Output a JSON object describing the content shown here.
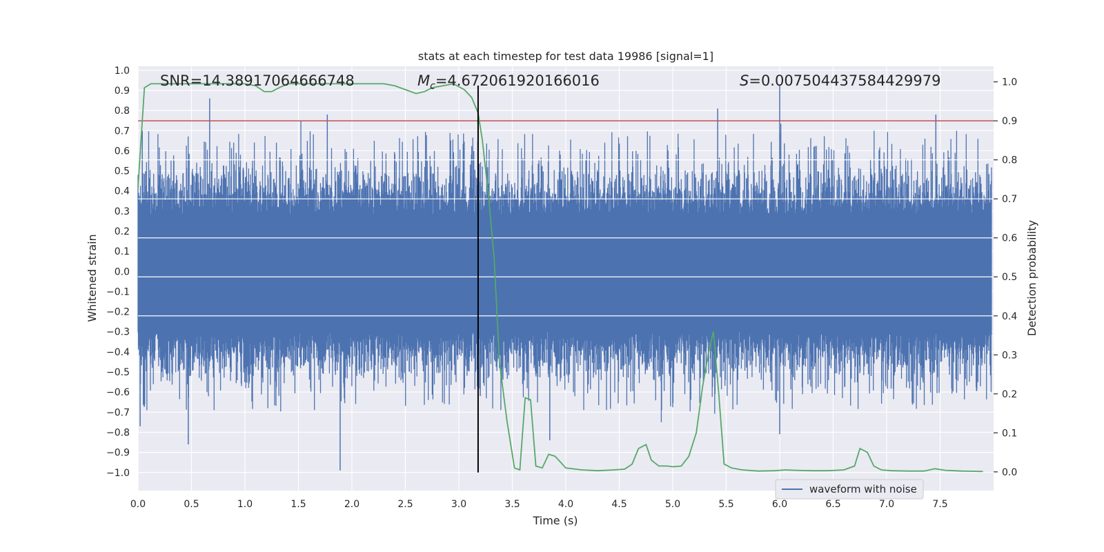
{
  "chart_data": {
    "type": "line",
    "title": "stats at each timestep for test data 19986 [signal=1]",
    "xlabel": "Time (s)",
    "ylabel_left": "Whitened strain",
    "ylabel_right": "Detection probability",
    "xlim": [
      0.0,
      8.0
    ],
    "ylim_left": [
      -1.09,
      1.02
    ],
    "ylim_right": [
      -0.048,
      1.04
    ],
    "x_ticks": [
      0.0,
      0.5,
      1.0,
      1.5,
      2.0,
      2.5,
      3.0,
      3.5,
      4.0,
      4.5,
      5.0,
      5.5,
      6.0,
      6.5,
      7.0,
      7.5
    ],
    "x_tick_labels": [
      "0.0",
      "0.5",
      "1.0",
      "1.5",
      "2.0",
      "2.5",
      "3.0",
      "3.5",
      "4.0",
      "4.5",
      "5.0",
      "5.5",
      "6.0",
      "6.5",
      "7.0",
      "7.5"
    ],
    "y_left_ticks": [
      1.0,
      0.9,
      0.8,
      0.7,
      0.6,
      0.5,
      0.4,
      0.3,
      0.2,
      0.1,
      0.0,
      -0.1,
      -0.2,
      -0.3,
      -0.4,
      -0.5,
      -0.6,
      -0.7,
      -0.8,
      -0.9,
      -1.0
    ],
    "y_left_tick_labels": [
      "1.0",
      "0.9",
      "0.8",
      "0.7",
      "0.6",
      "0.5",
      "0.4",
      "0.3",
      "0.2",
      "0.1",
      "0.0",
      "−0.1",
      "−0.2",
      "−0.3",
      "−0.4",
      "−0.5",
      "−0.6",
      "−0.7",
      "−0.8",
      "−0.9",
      "−1.0"
    ],
    "y_right_ticks": [
      1.0,
      0.9,
      0.8,
      0.7,
      0.6,
      0.5,
      0.4,
      0.3,
      0.2,
      0.1,
      0.0
    ],
    "y_right_tick_labels": [
      "1.0",
      "0.9",
      "0.8",
      "0.7",
      "0.6",
      "0.5",
      "0.4",
      "0.3",
      "0.2",
      "0.1",
      "0.0"
    ],
    "annotations": {
      "snr": "SNR=14.38917064666748",
      "mc_symbol": "M",
      "mc_sub": "c",
      "mc_value": "=4.672061920166016",
      "s_symbol": "S",
      "s_value": "=0.007504437584429979"
    },
    "threshold_right": 0.9,
    "merger_time": 3.18,
    "legend": {
      "label": "waveform with noise",
      "placement": "lower-right"
    },
    "series": [
      {
        "name": "waveform with noise",
        "axis": "left",
        "color": "#4c72b0",
        "style": "dense noise, typical envelope ±0.45",
        "notable_peaks": [
          {
            "x": 0.02,
            "y": -0.77
          },
          {
            "x": 0.04,
            "y": 0.7
          },
          {
            "x": 0.47,
            "y": -0.86
          },
          {
            "x": 0.67,
            "y": 0.86
          },
          {
            "x": 1.77,
            "y": 0.78
          },
          {
            "x": 1.89,
            "y": -0.99
          },
          {
            "x": 3.2,
            "y": -0.62
          },
          {
            "x": 3.85,
            "y": -0.84
          },
          {
            "x": 5.42,
            "y": 0.81
          },
          {
            "x": 6.0,
            "y": 0.93
          },
          {
            "x": 6.0,
            "y": -0.81
          },
          {
            "x": 7.46,
            "y": 0.78
          }
        ]
      },
      {
        "name": "detection probability",
        "axis": "right",
        "color": "#55a868",
        "x": [
          0.0,
          0.06,
          0.12,
          0.2,
          0.4,
          0.6,
          0.8,
          1.0,
          1.1,
          1.18,
          1.25,
          1.32,
          1.4,
          1.5,
          1.7,
          1.9,
          2.1,
          2.3,
          2.4,
          2.5,
          2.6,
          2.68,
          2.75,
          2.85,
          2.95,
          3.05,
          3.12,
          3.18,
          3.22,
          3.28,
          3.33,
          3.38,
          3.45,
          3.52,
          3.57,
          3.62,
          3.67,
          3.72,
          3.78,
          3.84,
          3.9,
          4.0,
          4.15,
          4.3,
          4.45,
          4.55,
          4.62,
          4.68,
          4.75,
          4.8,
          4.87,
          4.95,
          5.0,
          5.08,
          5.15,
          5.22,
          5.28,
          5.33,
          5.38,
          5.43,
          5.48,
          5.55,
          5.65,
          5.8,
          5.95,
          6.05,
          6.15,
          6.3,
          6.45,
          6.6,
          6.7,
          6.75,
          6.82,
          6.88,
          6.95,
          7.05,
          7.2,
          7.35,
          7.45,
          7.55,
          7.7,
          7.9
        ],
        "y": [
          0.73,
          0.985,
          0.995,
          0.995,
          0.995,
          0.995,
          0.995,
          0.995,
          0.99,
          0.975,
          0.975,
          0.985,
          0.995,
          0.995,
          0.995,
          0.995,
          0.995,
          0.995,
          0.99,
          0.98,
          0.97,
          0.975,
          0.985,
          0.99,
          0.995,
          0.98,
          0.96,
          0.92,
          0.85,
          0.7,
          0.55,
          0.28,
          0.13,
          0.01,
          0.005,
          0.19,
          0.185,
          0.015,
          0.01,
          0.045,
          0.04,
          0.01,
          0.005,
          0.003,
          0.005,
          0.007,
          0.02,
          0.06,
          0.07,
          0.03,
          0.015,
          0.015,
          0.013,
          0.015,
          0.04,
          0.1,
          0.22,
          0.3,
          0.36,
          0.2,
          0.02,
          0.01,
          0.005,
          0.002,
          0.003,
          0.005,
          0.004,
          0.003,
          0.003,
          0.005,
          0.015,
          0.06,
          0.05,
          0.015,
          0.005,
          0.003,
          0.002,
          0.002,
          0.008,
          0.004,
          0.002,
          0.001
        ]
      }
    ]
  }
}
